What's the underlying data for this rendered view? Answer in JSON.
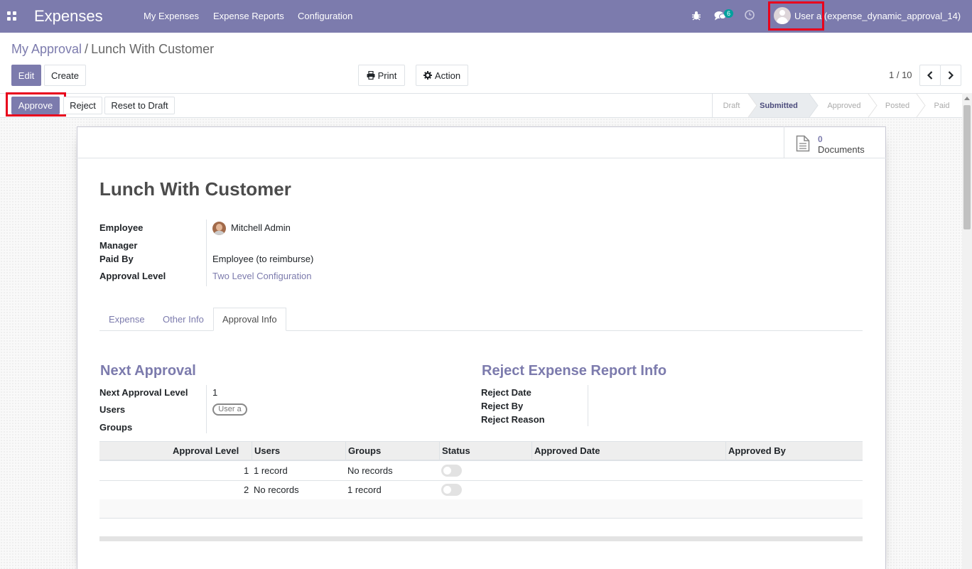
{
  "navbar": {
    "app_name": "Expenses",
    "menu": [
      "My Expenses",
      "Expense Reports",
      "Configuration"
    ],
    "chat_count": "6",
    "user_label": "User a (expense_dynamic_approval_14)",
    "accent_color": "#7c7bad"
  },
  "breadcrumb": {
    "parent": "My Approval",
    "separator": "/",
    "current": "Lunch With Customer"
  },
  "control_panel": {
    "edit_label": "Edit",
    "create_label": "Create",
    "print_label": "Print",
    "action_label": "Action",
    "pager_value": "1 / 10"
  },
  "statusbar": {
    "buttons": {
      "approve": "Approve",
      "reject": "Reject",
      "reset": "Reset to Draft"
    },
    "stages": [
      "Draft",
      "Submitted",
      "Approved",
      "Posted",
      "Paid"
    ],
    "active_stage": "Submitted"
  },
  "smart_button": {
    "count": "0",
    "label": "Documents"
  },
  "record": {
    "title": "Lunch With Customer",
    "fields": {
      "employee_label": "Employee",
      "employee_value": "Mitchell Admin",
      "manager_label": "Manager",
      "manager_value": "",
      "paid_by_label": "Paid By",
      "paid_by_value": "Employee (to reimburse)",
      "approval_level_label": "Approval Level",
      "approval_level_value": "Two Level Configuration"
    }
  },
  "tabs": [
    "Expense",
    "Other Info",
    "Approval Info"
  ],
  "active_tab": "Approval Info",
  "next_approval": {
    "title": "Next Approval",
    "level_label": "Next Approval Level",
    "level_value": "1",
    "users_label": "Users",
    "users_tag": "User a",
    "groups_label": "Groups"
  },
  "reject_info": {
    "title": "Reject Expense Report Info",
    "date_label": "Reject Date",
    "by_label": "Reject By",
    "reason_label": "Reject Reason"
  },
  "approval_table": {
    "columns": [
      "Approval Level",
      "Users",
      "Groups",
      "Status",
      "Approved Date",
      "Approved By"
    ],
    "rows": [
      {
        "level": "1",
        "users": "1 record",
        "groups": "No records",
        "status": false,
        "approved_date": "",
        "approved_by": ""
      },
      {
        "level": "2",
        "users": "No records",
        "groups": "1 record",
        "status": false,
        "approved_date": "",
        "approved_by": ""
      }
    ]
  }
}
